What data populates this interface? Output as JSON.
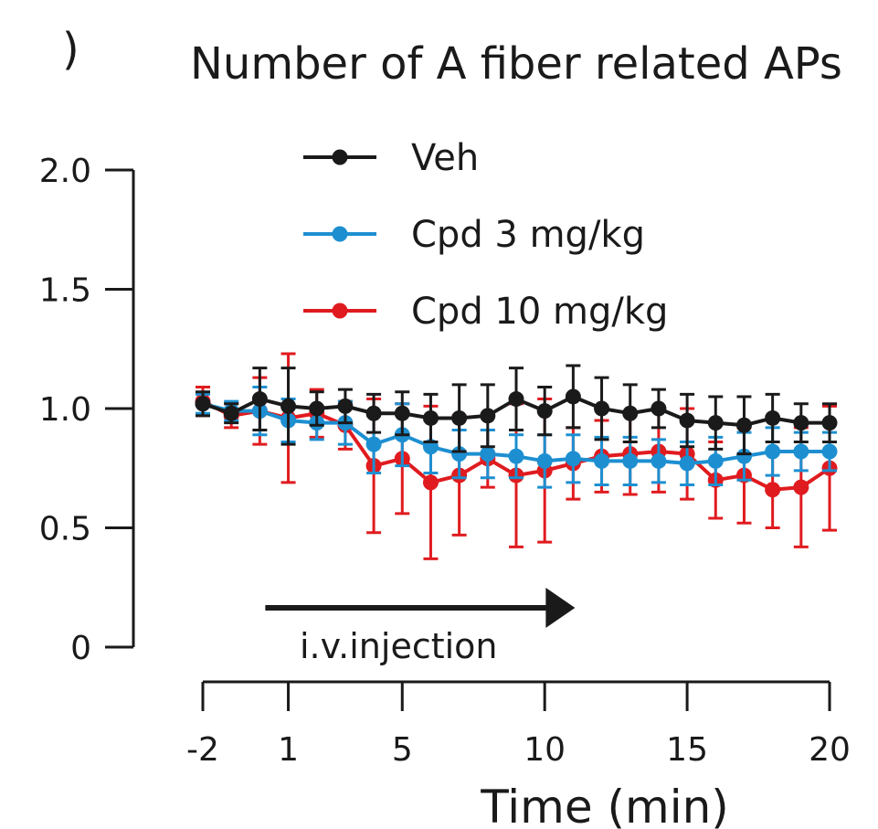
{
  "chart_data": {
    "type": "line",
    "title": "Number of A fiber related APs",
    "panel_label": ")",
    "xlabel": "Time (min)",
    "ylabel": "",
    "xlim": [
      -2,
      20
    ],
    "ylim": [
      0,
      2
    ],
    "yticks": [
      0,
      0.5,
      1.0,
      1.5,
      2.0
    ],
    "ytick_labels": [
      "0",
      "0.5",
      "1.0",
      "1.5",
      "2.0"
    ],
    "xticks": [
      -2,
      1,
      5,
      10,
      15,
      20
    ],
    "xtick_labels": [
      "-2",
      "1",
      "5",
      "10",
      "15",
      "20"
    ],
    "x": [
      -2,
      -1,
      0,
      1,
      2,
      3,
      4,
      5,
      6,
      7,
      8,
      9,
      10,
      11,
      12,
      13,
      14,
      15,
      16,
      17,
      18,
      19,
      20
    ],
    "legend_position": "top-center",
    "annotation": {
      "text": "i.v.injection",
      "arrow_from_x": 0,
      "arrow_to_x": 11
    },
    "series": [
      {
        "name": "Veh",
        "color": "#1a1a1a",
        "values": [
          1.02,
          0.98,
          1.04,
          1.01,
          1.0,
          1.01,
          0.98,
          0.98,
          0.96,
          0.96,
          0.97,
          1.04,
          0.99,
          1.05,
          1.0,
          0.98,
          1.0,
          0.95,
          0.94,
          0.93,
          0.96,
          0.94,
          0.94
        ],
        "errors": [
          0.05,
          0.04,
          0.13,
          0.16,
          0.07,
          0.07,
          0.08,
          0.09,
          0.1,
          0.14,
          0.13,
          0.13,
          0.1,
          0.13,
          0.13,
          0.12,
          0.08,
          0.11,
          0.11,
          0.12,
          0.1,
          0.08,
          0.08
        ]
      },
      {
        "name": "Cpd 3 mg/kg",
        "color": "#1d8fd1",
        "values": [
          1.02,
          0.99,
          0.99,
          0.95,
          0.94,
          0.94,
          0.85,
          0.89,
          0.84,
          0.81,
          0.81,
          0.8,
          0.78,
          0.79,
          0.78,
          0.78,
          0.78,
          0.77,
          0.78,
          0.8,
          0.82,
          0.82,
          0.82
        ],
        "errors": [
          0.04,
          0.04,
          0.1,
          0.09,
          0.07,
          0.09,
          0.12,
          0.13,
          0.11,
          0.1,
          0.1,
          0.09,
          0.11,
          0.1,
          0.1,
          0.1,
          0.09,
          0.09,
          0.1,
          0.1,
          0.1,
          0.08,
          0.08
        ]
      },
      {
        "name": "Cpd 10 mg/kg",
        "color": "#e01b1f",
        "values": [
          1.03,
          0.97,
          0.99,
          0.96,
          0.98,
          0.93,
          0.76,
          0.79,
          0.69,
          0.72,
          0.79,
          0.72,
          0.74,
          0.77,
          0.8,
          0.81,
          0.82,
          0.81,
          0.7,
          0.72,
          0.66,
          0.67,
          0.75
        ],
        "errors": [
          0.06,
          0.05,
          0.14,
          0.27,
          0.1,
          0.1,
          0.28,
          0.23,
          0.32,
          0.25,
          0.12,
          0.3,
          0.3,
          0.15,
          0.15,
          0.17,
          0.17,
          0.19,
          0.16,
          0.2,
          0.16,
          0.25,
          0.26
        ]
      }
    ]
  }
}
